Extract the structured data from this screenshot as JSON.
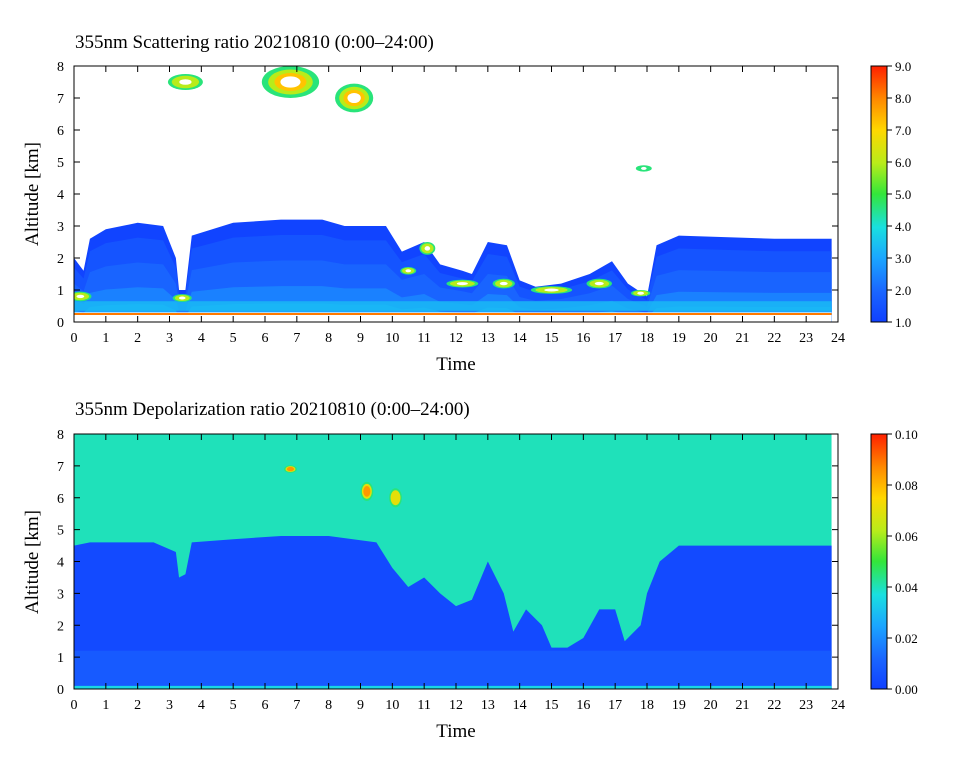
{
  "chart_data": [
    {
      "type": "heatmap",
      "title": "355nm Scattering ratio  20210810 (0:00–24:00)",
      "xlabel": "Time",
      "ylabel": "Altitude [km]",
      "xlim": [
        0,
        24
      ],
      "ylim": [
        0,
        8
      ],
      "x_ticks": [
        "0",
        "1",
        "2",
        "3",
        "4",
        "5",
        "6",
        "7",
        "8",
        "9",
        "10",
        "11",
        "12",
        "13",
        "14",
        "15",
        "16",
        "17",
        "18",
        "19",
        "20",
        "21",
        "22",
        "23",
        "24"
      ],
      "y_ticks": [
        "0",
        "1",
        "2",
        "3",
        "4",
        "5",
        "6",
        "7",
        "8"
      ],
      "colorbar": {
        "range": [
          1.0,
          9.0
        ],
        "ticks": [
          "1.0",
          "2.0",
          "3.0",
          "4.0",
          "5.0",
          "6.0",
          "7.0",
          "8.0",
          "9.0"
        ]
      },
      "cloud_top_profile_km": [
        [
          0.0,
          2.0
        ],
        [
          0.3,
          1.6
        ],
        [
          0.5,
          2.6
        ],
        [
          1.0,
          2.9
        ],
        [
          2.0,
          3.1
        ],
        [
          2.8,
          3.0
        ],
        [
          3.2,
          2.0
        ],
        [
          3.3,
          1.0
        ],
        [
          3.5,
          1.0
        ],
        [
          3.7,
          2.7
        ],
        [
          5.0,
          3.1
        ],
        [
          6.5,
          3.2
        ],
        [
          7.8,
          3.2
        ],
        [
          8.5,
          3.0
        ],
        [
          9.8,
          3.0
        ],
        [
          10.3,
          2.2
        ],
        [
          11.0,
          2.5
        ],
        [
          11.5,
          1.8
        ],
        [
          12.2,
          1.6
        ],
        [
          12.5,
          1.5
        ],
        [
          13.0,
          2.5
        ],
        [
          13.6,
          2.4
        ],
        [
          14.0,
          1.3
        ],
        [
          14.5,
          1.1
        ],
        [
          15.3,
          1.2
        ],
        [
          16.2,
          1.5
        ],
        [
          16.9,
          1.9
        ],
        [
          17.4,
          1.2
        ],
        [
          18.0,
          0.8
        ],
        [
          18.3,
          2.4
        ],
        [
          19.0,
          2.7
        ],
        [
          22.0,
          2.6
        ],
        [
          23.8,
          2.6
        ]
      ],
      "features": [
        {
          "t": 0.2,
          "z": 0.8,
          "rx": 0.35,
          "rz": 0.15,
          "value": 7.0
        },
        {
          "t": 3.4,
          "z": 0.75,
          "rx": 0.3,
          "rz": 0.12,
          "value": 6.8
        },
        {
          "t": 6.8,
          "z": 7.5,
          "rx": 0.9,
          "rz": 0.5,
          "value": 7.5
        },
        {
          "t": 8.8,
          "z": 7.0,
          "rx": 0.6,
          "rz": 0.45,
          "value": 8.5
        },
        {
          "t": 3.5,
          "z": 7.5,
          "rx": 0.55,
          "rz": 0.25,
          "value": 6.5
        },
        {
          "t": 11.1,
          "z": 2.3,
          "rx": 0.25,
          "rz": 0.2,
          "value": 6.5
        },
        {
          "t": 10.5,
          "z": 1.6,
          "rx": 0.25,
          "rz": 0.12,
          "value": 6.0
        },
        {
          "t": 12.2,
          "z": 1.2,
          "rx": 0.5,
          "rz": 0.12,
          "value": 6.5
        },
        {
          "t": 13.5,
          "z": 1.2,
          "rx": 0.35,
          "rz": 0.15,
          "value": 6.5
        },
        {
          "t": 15.0,
          "z": 1.0,
          "rx": 0.65,
          "rz": 0.12,
          "value": 6.3
        },
        {
          "t": 16.5,
          "z": 1.2,
          "rx": 0.4,
          "rz": 0.15,
          "value": 6.3
        },
        {
          "t": 17.8,
          "z": 0.9,
          "rx": 0.3,
          "rz": 0.1,
          "value": 6.0
        },
        {
          "t": 17.9,
          "z": 4.8,
          "rx": 0.25,
          "rz": 0.1,
          "value": 5.5
        }
      ]
    },
    {
      "type": "heatmap",
      "title": "355nm Depolarization ratio  20210810 (0:00–24:00)",
      "xlabel": "Time",
      "ylabel": "Altitude [km]",
      "xlim": [
        0,
        24
      ],
      "ylim": [
        0,
        8
      ],
      "x_ticks": [
        "0",
        "1",
        "2",
        "3",
        "4",
        "5",
        "6",
        "7",
        "8",
        "9",
        "10",
        "11",
        "12",
        "13",
        "14",
        "15",
        "16",
        "17",
        "18",
        "19",
        "20",
        "21",
        "22",
        "23",
        "24"
      ],
      "y_ticks": [
        "0",
        "1",
        "2",
        "3",
        "4",
        "5",
        "6",
        "7",
        "8"
      ],
      "colorbar": {
        "range": [
          0.0,
          0.1
        ],
        "ticks": [
          "0.00",
          "0.02",
          "0.04",
          "0.06",
          "0.08",
          "0.10"
        ]
      },
      "aerosol_top_profile_km": [
        [
          0.0,
          4.5
        ],
        [
          0.5,
          4.6
        ],
        [
          2.5,
          4.6
        ],
        [
          3.2,
          4.3
        ],
        [
          3.3,
          3.5
        ],
        [
          3.5,
          3.6
        ],
        [
          3.7,
          4.6
        ],
        [
          5.0,
          4.7
        ],
        [
          6.5,
          4.8
        ],
        [
          8.0,
          4.8
        ],
        [
          9.5,
          4.6
        ],
        [
          10.0,
          3.8
        ],
        [
          10.5,
          3.2
        ],
        [
          11.0,
          3.5
        ],
        [
          11.5,
          3.0
        ],
        [
          12.0,
          2.6
        ],
        [
          12.5,
          2.8
        ],
        [
          13.0,
          4.0
        ],
        [
          13.5,
          3.0
        ],
        [
          13.8,
          1.8
        ],
        [
          14.2,
          2.5
        ],
        [
          14.7,
          2.0
        ],
        [
          15.0,
          1.3
        ],
        [
          15.5,
          1.3
        ],
        [
          16.0,
          1.6
        ],
        [
          16.5,
          2.5
        ],
        [
          17.0,
          2.5
        ],
        [
          17.3,
          1.5
        ],
        [
          17.8,
          2.0
        ],
        [
          18.0,
          3.0
        ],
        [
          18.4,
          4.0
        ],
        [
          19.0,
          4.5
        ],
        [
          22.0,
          4.5
        ],
        [
          23.8,
          4.5
        ]
      ],
      "features": [
        {
          "t": 9.2,
          "z": 6.2,
          "rx": 0.2,
          "rz": 0.3,
          "value": 0.085
        },
        {
          "t": 10.1,
          "z": 6.0,
          "rx": 0.2,
          "rz": 0.3,
          "value": 0.08
        },
        {
          "t": 6.8,
          "z": 6.9,
          "rx": 0.2,
          "rz": 0.12,
          "value": 0.09
        }
      ]
    }
  ]
}
